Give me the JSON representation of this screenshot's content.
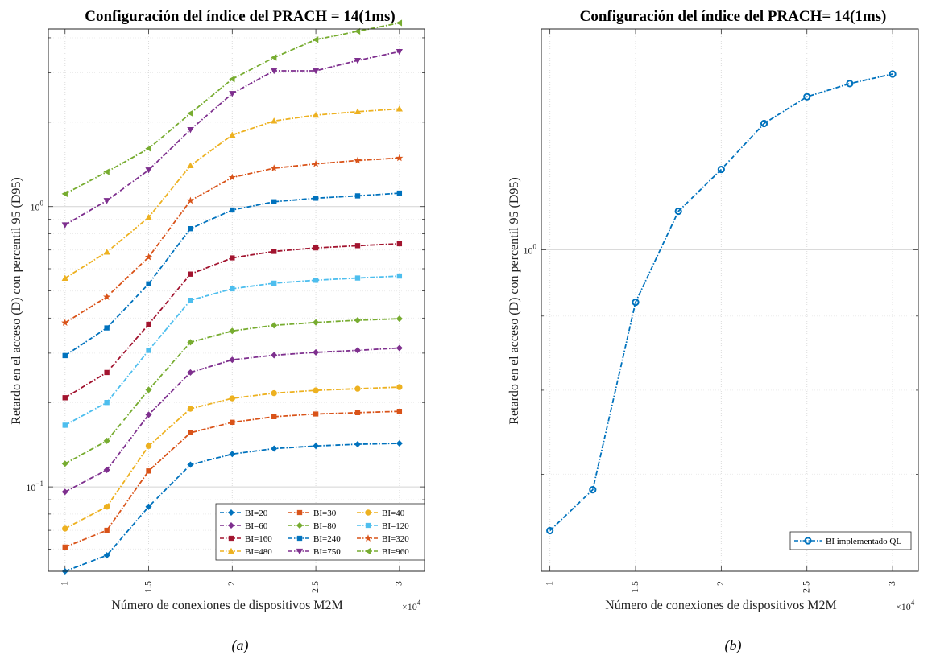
{
  "chart_data": [
    {
      "id": "a",
      "type": "line",
      "title": "Configuración del índice del PRACH = 14(1ms)",
      "xlabel": "Número de conexiones de dispositivos M2M",
      "ylabel": "Retardo en el acceso (D) con percentil 95 (D95)",
      "x_exponent": "×10",
      "x_exponent_power": "4",
      "caption": "(a)",
      "yscale": "log",
      "grid": true,
      "legend_position": "bottom-right",
      "xlim": [
        0.9,
        3.15
      ],
      "ylim": [
        0.05,
        4.3
      ],
      "xticks": [
        1,
        1.5,
        2,
        2.5,
        3
      ],
      "xtick_labels": [
        "1",
        "1.5",
        "2",
        "2.5",
        "3"
      ],
      "yticks": [
        0.1,
        1
      ],
      "ytick_base": "10",
      "ytick_powers": [
        "−1",
        "0"
      ],
      "x": [
        1,
        1.25,
        1.5,
        1.75,
        2,
        2.25,
        2.5,
        2.75,
        3
      ],
      "series": [
        {
          "name": "BI=20",
          "color": "#0072BD",
          "marker": "diamond",
          "values": [
            0.05,
            0.057,
            0.085,
            0.12,
            0.131,
            0.137,
            0.14,
            0.142,
            0.143
          ]
        },
        {
          "name": "BI=30",
          "color": "#D95319",
          "marker": "square",
          "values": [
            0.061,
            0.07,
            0.114,
            0.156,
            0.17,
            0.178,
            0.182,
            0.184,
            0.186
          ]
        },
        {
          "name": "BI=40",
          "color": "#EDB120",
          "marker": "circle",
          "values": [
            0.071,
            0.085,
            0.14,
            0.19,
            0.207,
            0.216,
            0.221,
            0.224,
            0.227
          ]
        },
        {
          "name": "BI=60",
          "color": "#7E2F8E",
          "marker": "diamond",
          "values": [
            0.096,
            0.115,
            0.181,
            0.256,
            0.284,
            0.295,
            0.302,
            0.307,
            0.313
          ]
        },
        {
          "name": "BI=80",
          "color": "#77AC30",
          "marker": "diamond",
          "values": [
            0.121,
            0.146,
            0.222,
            0.328,
            0.36,
            0.377,
            0.386,
            0.393,
            0.398
          ]
        },
        {
          "name": "BI=120",
          "color": "#4DBEEE",
          "marker": "square",
          "values": [
            0.166,
            0.2,
            0.307,
            0.463,
            0.509,
            0.533,
            0.546,
            0.556,
            0.565
          ]
        },
        {
          "name": "BI=160",
          "color": "#A2142F",
          "marker": "square",
          "values": [
            0.208,
            0.256,
            0.38,
            0.574,
            0.656,
            0.692,
            0.712,
            0.725,
            0.737
          ]
        },
        {
          "name": "BI=240",
          "color": "#0072BD",
          "marker": "square",
          "values": [
            0.294,
            0.369,
            0.53,
            0.834,
            0.972,
            1.04,
            1.071,
            1.092,
            1.116
          ]
        },
        {
          "name": "BI=320",
          "color": "#D95319",
          "marker": "star",
          "values": [
            0.385,
            0.476,
            0.66,
            1.05,
            1.27,
            1.37,
            1.42,
            1.46,
            1.49
          ]
        },
        {
          "name": "BI=480",
          "color": "#EDB120",
          "marker": "triangle-up",
          "values": [
            0.555,
            0.688,
            0.915,
            1.4,
            1.8,
            2.02,
            2.12,
            2.18,
            2.23
          ]
        },
        {
          "name": "BI=750",
          "color": "#7E2F8E",
          "marker": "triangle-down",
          "values": [
            0.86,
            1.05,
            1.35,
            1.88,
            2.53,
            3.05,
            3.05,
            3.32,
            3.57
          ]
        },
        {
          "name": "BI=960",
          "color": "#77AC30",
          "marker": "triangle-left",
          "values": [
            1.11,
            1.33,
            1.61,
            2.15,
            2.85,
            3.4,
            3.94,
            4.22,
            4.52
          ]
        }
      ]
    },
    {
      "id": "b",
      "type": "line",
      "title": "Configuración del índice del PRACH= 14(1ms)",
      "xlabel": "Número de conexiones de dispositivos M2M",
      "ylabel": "Retardo en el acceso (D) con percentil 95 (D95)",
      "x_exponent": "×10",
      "x_exponent_power": "4",
      "caption": "(b)",
      "yscale": "log",
      "grid": true,
      "legend_position": "bottom-right",
      "xlim": [
        0.95,
        3.15
      ],
      "ylim": [
        0.6,
        1.42
      ],
      "xticks": [
        1,
        1.5,
        2,
        2.5,
        3
      ],
      "xtick_labels": [
        "1",
        "1.5",
        "2",
        "2.5",
        "3"
      ],
      "yticks": [
        1
      ],
      "ytick_base": "10",
      "ytick_powers": [
        "0"
      ],
      "x": [
        1,
        1.25,
        1.5,
        1.75,
        2,
        2.25,
        2.5,
        2.75,
        3
      ],
      "series": [
        {
          "name": "BI implementado QL",
          "color": "#0072BD",
          "marker": "circle",
          "values": [
            0.64,
            0.683,
            0.92,
            1.063,
            1.136,
            1.222,
            1.275,
            1.302,
            1.322
          ]
        }
      ]
    }
  ]
}
